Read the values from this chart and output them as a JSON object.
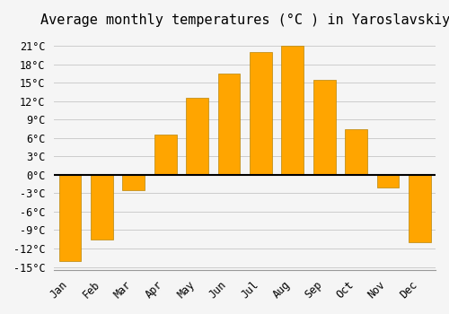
{
  "title": "Average monthly temperatures (°C ) in Yaroslavskiy",
  "months": [
    "Jan",
    "Feb",
    "Mar",
    "Apr",
    "May",
    "Jun",
    "Jul",
    "Aug",
    "Sep",
    "Oct",
    "Nov",
    "Dec"
  ],
  "temperatures": [
    -14,
    -10.5,
    -2.5,
    6.5,
    12.5,
    16.5,
    20,
    21,
    15.5,
    7.5,
    -2,
    -11
  ],
  "bar_color_top": "#FFA500",
  "bar_color_gradient_start": "#FFB733",
  "bar_color": "#FFA500",
  "background_color": "#F5F5F5",
  "grid_color": "#CCCCCC",
  "ylim": [
    -15,
    22
  ],
  "yticks": [
    -15,
    -12,
    -9,
    -6,
    -3,
    0,
    3,
    6,
    9,
    12,
    15,
    18,
    21
  ],
  "ytick_labels": [
    "-15°C",
    "-12°C",
    "-9°C",
    "-6°C",
    "-3°C",
    "0°C",
    "3°C",
    "6°C",
    "9°C",
    "12°C",
    "15°C",
    "18°C",
    "21°C"
  ],
  "zero_line_color": "#000000",
  "title_fontsize": 11,
  "tick_fontsize": 8.5
}
